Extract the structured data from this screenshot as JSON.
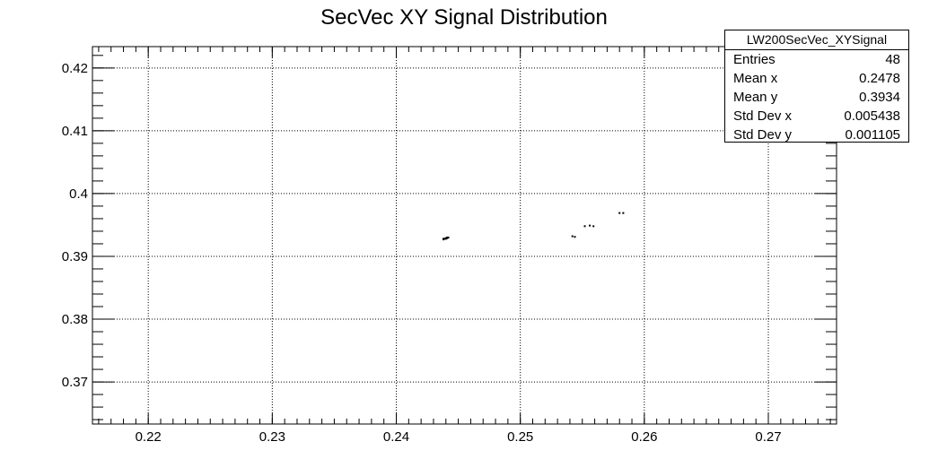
{
  "chart_data": {
    "type": "scatter",
    "title": "SecVec XY Signal Distribution",
    "xlabel": "",
    "ylabel": "",
    "xlim": [
      0.2155,
      0.2755
    ],
    "ylim": [
      0.3633,
      0.4234
    ],
    "x_ticks": [
      0.22,
      0.23,
      0.24,
      0.25,
      0.26,
      0.27
    ],
    "x_tick_labels": [
      "0.22",
      "0.23",
      "0.24",
      "0.25",
      "0.26",
      "0.27"
    ],
    "y_ticks": [
      0.37,
      0.38,
      0.39,
      0.4,
      0.41,
      0.42
    ],
    "y_tick_labels": [
      "0.37",
      "0.38",
      "0.39",
      "0.4",
      "0.41",
      "0.42"
    ],
    "grid": true,
    "legend_position": "top-right",
    "points": [
      {
        "x": 0.2438,
        "y": 0.3927
      },
      {
        "x": 0.2439,
        "y": 0.3928
      },
      {
        "x": 0.244,
        "y": 0.3929
      },
      {
        "x": 0.2441,
        "y": 0.3929
      },
      {
        "x": 0.2442,
        "y": 0.393
      },
      {
        "x": 0.244,
        "y": 0.3928
      },
      {
        "x": 0.2438,
        "y": 0.3928
      },
      {
        "x": 0.2441,
        "y": 0.393
      },
      {
        "x": 0.2542,
        "y": 0.3932
      },
      {
        "x": 0.2544,
        "y": 0.3931
      },
      {
        "x": 0.2552,
        "y": 0.3948
      },
      {
        "x": 0.2556,
        "y": 0.3949
      },
      {
        "x": 0.2559,
        "y": 0.3948
      },
      {
        "x": 0.258,
        "y": 0.3969
      },
      {
        "x": 0.2583,
        "y": 0.3969
      }
    ],
    "stats": {
      "title": "LW200SecVec_XYSignal",
      "rows": [
        {
          "label": "Entries",
          "value": "48"
        },
        {
          "label": "Mean x",
          "value": "0.2478"
        },
        {
          "label": "Mean y",
          "value": "0.3934"
        },
        {
          "label": "Std Dev x",
          "value": "0.005438"
        },
        {
          "label": "Std Dev y",
          "value": "0.001105"
        }
      ]
    }
  }
}
